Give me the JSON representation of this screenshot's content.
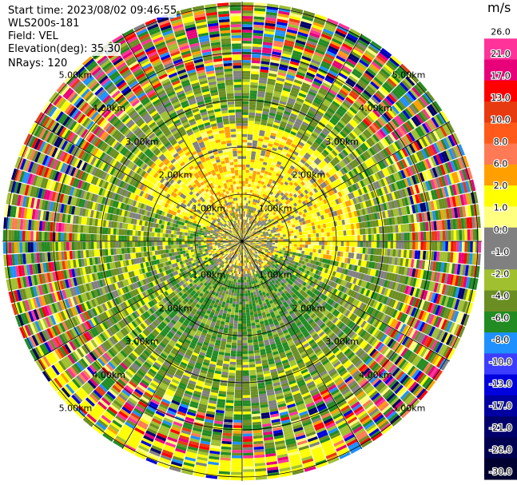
{
  "header": {
    "start_time": "Start time: 2023/08/02 09:46:55",
    "instrument": "WLS200s-181",
    "field": "Field: VEL",
    "elevation": "Elevation(deg): 35.30",
    "nrays": "NRays: 120"
  },
  "chart_data": {
    "type": "heatmap",
    "projection": "polar-ppi",
    "field": "VEL",
    "n_rays": 120,
    "range_rings_km": [
      1,
      2,
      3,
      4,
      5
    ],
    "ring_labels": [
      "1.00km",
      "2.00km",
      "3.00km",
      "4.00km",
      "5.00km"
    ],
    "spoke_angles_deg": [
      0,
      30,
      60,
      90,
      120,
      150,
      180,
      210,
      240,
      270,
      300,
      330
    ],
    "colorbar": {
      "unit": "m/s",
      "ticks": [
        "26.0",
        "21.0",
        "17.0",
        "13.0",
        "10.0",
        "8.0",
        "6.0",
        "2.0",
        "1.0",
        "0.0",
        "-1.0",
        "-2.0",
        "-4.0",
        "-6.0",
        "-8.0",
        "-10.0",
        "-13.0",
        "-17.0",
        "-21.0",
        "-26.0",
        "-30.0"
      ],
      "colors": [
        "#ffffff",
        "#ff3399",
        "#e8007a",
        "#ff0000",
        "#e83a10",
        "#ff5a1a",
        "#ff7a55",
        "#ffa000",
        "#ffff00",
        "#ffff80",
        "#808080",
        "#808080",
        "#a0c030",
        "#6b8e23",
        "#228b22",
        "#1e90ff",
        "#3d3dff",
        "#0000dd",
        "#0000a0",
        "#00006b",
        "#000050",
        "#000030"
      ]
    },
    "regions": [
      {
        "from_km": 0.0,
        "to_km": 0.7,
        "dominant": "mixed yellow / gray / olive"
      },
      {
        "from_km": 0.7,
        "to_km": 2.5,
        "dominant": "yellow (N, E), green and olive (S, W)"
      },
      {
        "from_km": 2.5,
        "to_km": 3.6,
        "dominant": "olive green with gray"
      },
      {
        "from_km": 3.6,
        "to_km": 6.3,
        "dominant": "noisy all colors; yellow band toward S"
      }
    ]
  }
}
